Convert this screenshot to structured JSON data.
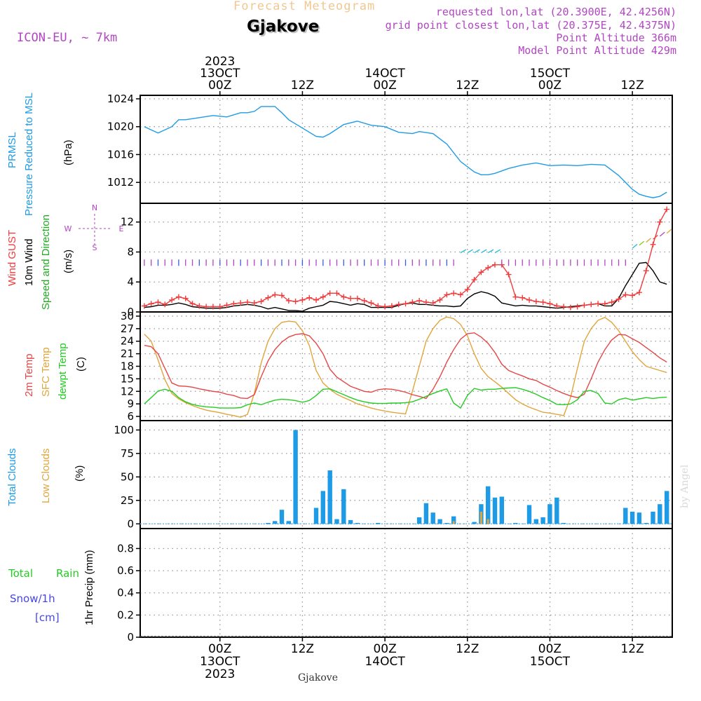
{
  "header": {
    "product_title": "Forecast Meteogram",
    "location": "Gjakove",
    "model": "ICON-EU, ~ 7km",
    "requested": "requested lon,lat (20.3900E, 42.4256N)",
    "grid_point": "grid point closest lon,lat (20.375E, 42.4375N)",
    "point_altitude": "Point Altitude 366m",
    "model_altitude": "Model Point Altitude 429m",
    "footer_location": "Gjakove",
    "credit": "by Angel"
  },
  "time_axis": {
    "top_year": "2023",
    "ticks_top": [
      {
        "hour": 0,
        "l1": "13OCT",
        "l2": "00Z"
      },
      {
        "hour": 12,
        "l1": "",
        "l2": "12Z"
      },
      {
        "hour": 24,
        "l1": "14OCT",
        "l2": "00Z"
      },
      {
        "hour": 36,
        "l1": "",
        "l2": "12Z"
      },
      {
        "hour": 48,
        "l1": "15OCT",
        "l2": "00Z"
      },
      {
        "hour": 60,
        "l1": "",
        "l2": "12Z"
      }
    ],
    "ticks_bottom": [
      {
        "hour": 0,
        "l1": "00Z",
        "l2": "13OCT",
        "l3": "2023"
      },
      {
        "hour": 12,
        "l1": "12Z",
        "l2": "",
        "l3": ""
      },
      {
        "hour": 24,
        "l1": "00Z",
        "l2": "14OCT",
        "l3": ""
      },
      {
        "hour": 36,
        "l1": "12Z",
        "l2": "",
        "l3": ""
      },
      {
        "hour": 48,
        "l1": "00Z",
        "l2": "15OCT",
        "l3": ""
      },
      {
        "hour": 60,
        "l1": "12Z",
        "l2": "",
        "l3": ""
      }
    ]
  },
  "panel_labels": {
    "pressure": {
      "name1": "PRMSL",
      "name2": "Pressure Reduced to MSL",
      "unit": "(hPa)"
    },
    "wind": {
      "gust": "Wind GUST",
      "wind10m": "10m Wind",
      "speed_dir": "Speed and Direction",
      "unit": "(m/s)",
      "compass_n": "N",
      "compass_s": "S",
      "compass_w": "W",
      "compass_e": "E"
    },
    "temp": {
      "t2m": "2m Temp",
      "sfc": "SFC Temp",
      "dewpt": "dewpt Temp",
      "unit": "(C)"
    },
    "clouds": {
      "total": "Total Clouds",
      "low": "Low Clouds",
      "unit": "(%)"
    },
    "precip": {
      "rain1": "Total",
      "rain2": "Rain",
      "snow1": "Snow/1h",
      "snow2": "[cm]",
      "ylabel": "1hr Precip (mm)"
    }
  },
  "colors": {
    "pressure": "#1e9be6",
    "gust": "#f03c3c",
    "wind": "#000000",
    "t2m": "#e64646",
    "sfc": "#e0a53c",
    "dewpt": "#22cc22",
    "total_clouds": "#1e9be6",
    "low_clouds": "#e0a53c",
    "rain": "#22cc22",
    "snow": "#4646e6",
    "purple": "#b146c2"
  },
  "chart_data": [
    {
      "type": "line",
      "title": "PRMSL Pressure Reduced to MSL",
      "ylabel": "(hPa)",
      "ylim": [
        1009,
        1024.5
      ],
      "yticks": [
        1012,
        1016,
        1020,
        1024
      ],
      "x_hours": [
        -11,
        -9,
        -7,
        -6,
        -5,
        -3,
        -1,
        1,
        3,
        4,
        5,
        6,
        7,
        8,
        9,
        10,
        12,
        14,
        15,
        16,
        18,
        20,
        22,
        24,
        26,
        28,
        29,
        31,
        33,
        35,
        37,
        38,
        39,
        40,
        42,
        44,
        46,
        48,
        50,
        52,
        54,
        56,
        58,
        59,
        60,
        61,
        62,
        63,
        64,
        65
      ],
      "series": [
        {
          "values": [
            1020.0,
            1019.1,
            1020.0,
            1021.0,
            1021.0,
            1021.3,
            1021.6,
            1021.4,
            1022.0,
            1022.0,
            1022.2,
            1022.9,
            1022.9,
            1022.9,
            1022.0,
            1021.0,
            1019.8,
            1018.6,
            1018.5,
            1019.0,
            1020.3,
            1020.8,
            1020.2,
            1020.0,
            1019.2,
            1019.0,
            1019.3,
            1019.0,
            1017.5,
            1015.0,
            1013.5,
            1013.1,
            1013.1,
            1013.3,
            1014.0,
            1014.5,
            1014.8,
            1014.4,
            1014.5,
            1014.4,
            1014.6,
            1014.5,
            1013.0,
            1012.0,
            1011.0,
            1010.3,
            1010.0,
            1009.8,
            1010.0,
            1010.6
          ]
        }
      ]
    },
    {
      "type": "line",
      "title": "Wind GUST / 10m Wind Speed and Direction",
      "ylabel": "(m/s)",
      "ylim": [
        0,
        14.5
      ],
      "yticks": [
        0,
        4,
        8,
        12
      ],
      "x_hours": [
        -11,
        -10,
        -9,
        -8,
        -7,
        -6,
        -5,
        -4,
        -3,
        -2,
        -1,
        0,
        1,
        2,
        3,
        4,
        5,
        6,
        7,
        8,
        9,
        10,
        11,
        12,
        13,
        14,
        15,
        16,
        17,
        18,
        19,
        20,
        21,
        22,
        23,
        24,
        25,
        26,
        27,
        28,
        29,
        30,
        31,
        32,
        33,
        34,
        35,
        36,
        37,
        38,
        39,
        40,
        41,
        42,
        43,
        44,
        45,
        46,
        47,
        48,
        49,
        50,
        51,
        52,
        53,
        54,
        55,
        56,
        57,
        58,
        59,
        60,
        61,
        62,
        63,
        64,
        65
      ],
      "series": [
        {
          "name": "Wind GUST",
          "values": [
            0.8,
            1.1,
            1.3,
            1.0,
            1.6,
            2.0,
            1.8,
            1.1,
            0.8,
            0.7,
            0.7,
            0.7,
            0.9,
            1.1,
            1.2,
            1.3,
            1.2,
            1.4,
            1.9,
            2.3,
            2.2,
            1.5,
            1.4,
            1.6,
            1.9,
            1.6,
            2.0,
            2.5,
            2.5,
            2.0,
            1.8,
            1.8,
            1.5,
            1.2,
            0.8,
            0.7,
            0.8,
            1.0,
            1.1,
            1.3,
            1.5,
            1.3,
            1.2,
            1.6,
            2.3,
            2.5,
            2.3,
            3.0,
            4.3,
            5.3,
            5.9,
            6.3,
            6.3,
            5.0,
            2.0,
            1.9,
            1.6,
            1.4,
            1.3,
            1.1,
            0.8,
            0.7,
            0.6,
            0.7,
            0.9,
            1.0,
            1.1,
            1.1,
            1.3,
            1.7,
            2.3,
            2.2,
            2.6,
            5.5,
            9.0,
            12.0,
            13.7
          ]
        },
        {
          "name": "10m Wind",
          "values": [
            0.6,
            0.7,
            0.9,
            0.9,
            1.0,
            1.2,
            1.0,
            0.7,
            0.6,
            0.5,
            0.5,
            0.5,
            0.6,
            0.8,
            0.9,
            1.0,
            0.9,
            0.7,
            0.4,
            0.6,
            0.4,
            0.2,
            0.2,
            0.1,
            0.5,
            0.7,
            0.9,
            1.4,
            1.3,
            1.1,
            0.9,
            1.1,
            1.0,
            0.6,
            0.6,
            0.6,
            0.6,
            0.9,
            1.1,
            1.2,
            1.0,
            1.0,
            0.9,
            0.8,
            0.8,
            0.7,
            0.8,
            1.8,
            2.4,
            2.7,
            2.5,
            2.1,
            1.2,
            1.0,
            0.8,
            0.9,
            0.8,
            0.8,
            0.7,
            0.6,
            0.5,
            0.6,
            0.7,
            0.8,
            0.9,
            1.0,
            1.1,
            0.8,
            0.8,
            1.8,
            3.5,
            5.0,
            6.5,
            6.6,
            5.5,
            4.0,
            3.7
          ]
        }
      ]
    },
    {
      "type": "line",
      "title": "2m Temp / SFC Temp / dewpt Temp",
      "ylabel": "(C)",
      "ylim": [
        5,
        31
      ],
      "yticks": [
        6,
        9,
        12,
        15,
        18,
        21,
        24,
        27,
        30
      ],
      "x_hours": [
        -11,
        -10,
        -9,
        -8,
        -7,
        -6,
        -5,
        -4,
        -3,
        -2,
        -1,
        0,
        1,
        2,
        3,
        4,
        5,
        6,
        7,
        8,
        9,
        10,
        11,
        12,
        13,
        14,
        15,
        16,
        17,
        18,
        19,
        20,
        21,
        22,
        23,
        24,
        25,
        26,
        27,
        28,
        29,
        30,
        31,
        32,
        33,
        34,
        35,
        36,
        37,
        38,
        39,
        40,
        41,
        42,
        43,
        44,
        45,
        46,
        47,
        48,
        49,
        50,
        51,
        52,
        53,
        54,
        55,
        56,
        57,
        58,
        59,
        60,
        61,
        62,
        63,
        64,
        65
      ],
      "series": [
        {
          "name": "2m Temp",
          "values": [
            23.0,
            22.7,
            21.0,
            17.5,
            14.0,
            13.3,
            13.2,
            13.0,
            12.6,
            12.3,
            12.0,
            11.8,
            11.3,
            11.0,
            10.4,
            10.3,
            11.2,
            15.5,
            19.3,
            22.0,
            23.8,
            25.0,
            25.6,
            25.8,
            25.3,
            23.5,
            21.0,
            17.3,
            15.4,
            14.3,
            13.2,
            12.6,
            12.0,
            11.8,
            12.4,
            12.6,
            12.5,
            12.2,
            11.8,
            11.2,
            10.8,
            10.3,
            12.5,
            15.5,
            19.0,
            22.0,
            24.5,
            25.8,
            26.0,
            25.0,
            23.5,
            21.3,
            18.5,
            17.0,
            16.3,
            15.7,
            15.0,
            14.6,
            13.7,
            13.0,
            12.2,
            11.5,
            10.9,
            10.5,
            11.3,
            15.0,
            19.0,
            22.0,
            24.3,
            25.6,
            25.5,
            24.6,
            23.7,
            22.5,
            21.3,
            20.0,
            19.0
          ]
        },
        {
          "name": "SFC Temp",
          "values": [
            25.7,
            24.0,
            19.5,
            14.8,
            11.5,
            10.2,
            9.3,
            8.6,
            8.0,
            7.5,
            7.2,
            6.9,
            6.5,
            6.2,
            5.8,
            6.5,
            11.5,
            18.8,
            24.0,
            27.0,
            28.5,
            28.8,
            28.6,
            26.5,
            23.0,
            17.0,
            14.0,
            12.5,
            11.3,
            10.5,
            9.8,
            9.0,
            8.5,
            8.0,
            7.6,
            7.3,
            7.0,
            6.8,
            6.6,
            12.0,
            18.0,
            24.0,
            27.0,
            29.0,
            29.8,
            29.4,
            28.0,
            25.3,
            21.0,
            17.5,
            15.5,
            14.3,
            13.0,
            11.5,
            10.0,
            9.0,
            8.2,
            7.6,
            7.0,
            6.8,
            6.5,
            6.2,
            10.5,
            17.5,
            24.0,
            27.0,
            29.0,
            29.7,
            28.5,
            26.5,
            24.0,
            21.5,
            19.6,
            18.0,
            17.5,
            17.0,
            16.5
          ]
        },
        {
          "name": "dewpt Temp",
          "values": [
            9.0,
            10.5,
            12.1,
            12.5,
            12.0,
            10.5,
            9.5,
            8.9,
            8.5,
            8.3,
            8.2,
            8.0,
            8.0,
            8.0,
            8.1,
            8.8,
            9.2,
            8.8,
            9.4,
            9.9,
            10.1,
            10.0,
            9.8,
            9.4,
            9.8,
            11.0,
            12.5,
            12.6,
            11.9,
            11.2,
            10.5,
            9.9,
            9.5,
            9.2,
            9.1,
            9.1,
            9.2,
            9.2,
            9.3,
            9.5,
            10.1,
            10.8,
            11.5,
            12.1,
            12.6,
            9.2,
            8.0,
            11.0,
            12.7,
            12.3,
            12.5,
            12.5,
            12.7,
            12.8,
            12.9,
            12.5,
            12.0,
            11.3,
            10.5,
            9.8,
            8.9,
            8.8,
            9.0,
            10.0,
            12.0,
            12.2,
            11.5,
            9.2,
            9.0,
            10.0,
            10.4,
            9.9,
            10.2,
            10.5,
            10.3,
            10.5,
            10.6
          ]
        }
      ]
    },
    {
      "type": "bar",
      "title": "Total Clouds / Low Clouds",
      "ylabel": "(%)",
      "ylim": [
        -5,
        110
      ],
      "yticks": [
        0,
        25,
        50,
        75,
        100
      ],
      "x_hours": [
        6,
        7,
        8,
        9,
        10,
        11,
        12,
        14,
        15,
        16,
        17,
        18,
        19,
        20,
        23,
        29,
        30,
        31,
        32,
        33,
        34,
        35,
        37,
        38,
        39,
        40,
        41,
        42,
        43,
        44,
        45,
        46,
        47,
        48,
        49,
        50,
        56,
        57,
        58,
        59,
        60,
        61,
        62,
        63,
        64,
        65
      ],
      "series": [
        {
          "name": "Total Clouds",
          "values": [
            0,
            1,
            3,
            15,
            3,
            100,
            0,
            17,
            35,
            57,
            5,
            37,
            4,
            1,
            1,
            7,
            22,
            12,
            5,
            1,
            8,
            0,
            2,
            21,
            40,
            28,
            29,
            0,
            1,
            0,
            20,
            5,
            7,
            21,
            28,
            1,
            0,
            0,
            0,
            17,
            13,
            12,
            1,
            13,
            21,
            35
          ]
        },
        {
          "name": "Low Clouds",
          "values": [
            0,
            0,
            0,
            0,
            0,
            0,
            0,
            0,
            0,
            0,
            0,
            0,
            0,
            0,
            0,
            0,
            0,
            0,
            0,
            0,
            3,
            0,
            0,
            13,
            5,
            0,
            0,
            0,
            0,
            0,
            0,
            0,
            0,
            0,
            0,
            0,
            0,
            0,
            0,
            0,
            0,
            0,
            0,
            0,
            0,
            0
          ]
        }
      ]
    },
    {
      "type": "bar",
      "title": "Total Rain / Snow/1h",
      "ylabel": "1hr Precip (mm)",
      "ylim": [
        0,
        0.98
      ],
      "yticks": [
        0,
        0.2,
        0.4,
        0.6,
        0.8
      ],
      "x_hours": [],
      "series": [
        {
          "name": "Total Rain",
          "values": []
        },
        {
          "name": "Snow/1h",
          "values": []
        }
      ]
    }
  ]
}
